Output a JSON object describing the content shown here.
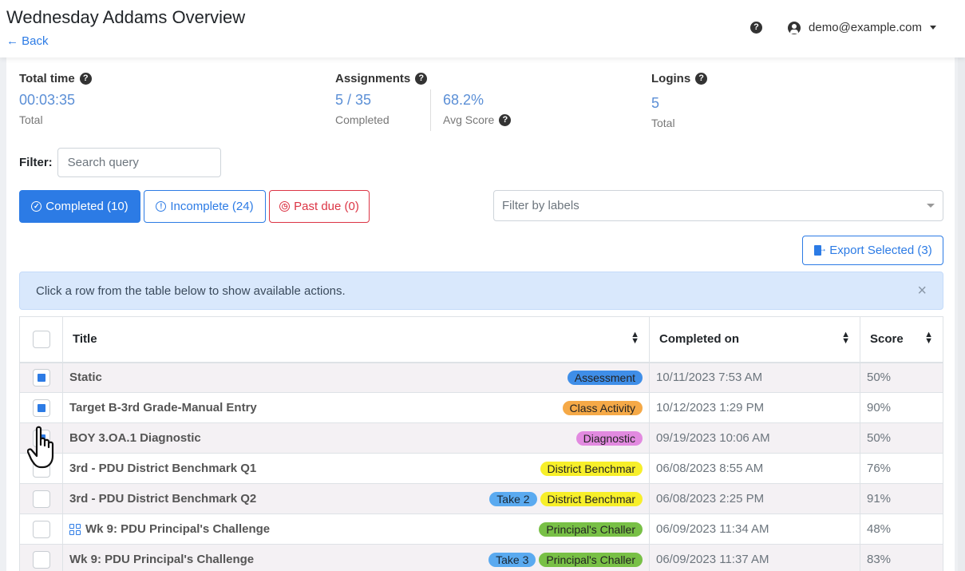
{
  "header": {
    "title": "Wednesday Addams Overview",
    "back_label": "← Back",
    "help": "?",
    "user_email": "demo@example.com"
  },
  "stats": {
    "total_time": {
      "label": "Total time",
      "value": "00:03:35",
      "sub": "Total"
    },
    "assignments": {
      "label": "Assignments",
      "value": "5 / 35",
      "sub": "Completed",
      "avg_value": "68.2%",
      "avg_sub": "Avg Score"
    },
    "logins": {
      "label": "Logins",
      "value": "5",
      "sub": "Total"
    }
  },
  "filter": {
    "label": "Filter:",
    "placeholder": "Search query"
  },
  "tabs": {
    "completed": "Completed (10)",
    "incomplete": "Incomplete (24)",
    "past_due": "Past due (0)"
  },
  "label_filter": {
    "placeholder": "Filter by labels"
  },
  "export": {
    "label": "Export Selected (3)"
  },
  "alert": {
    "text": "Click a row from the table below to show available actions.",
    "close": "×"
  },
  "table": {
    "headers": {
      "title": "Title",
      "completed_on": "Completed on",
      "score": "Score"
    },
    "rows": [
      {
        "checked": true,
        "title": "Static",
        "badges": [
          {
            "text": "Assessment",
            "color": "#3f8ee8"
          }
        ],
        "completed_on": "10/11/2023 7:53 AM",
        "score": "50%"
      },
      {
        "checked": true,
        "title": "Target B-3rd Grade-Manual Entry",
        "badges": [
          {
            "text": "Class Activity",
            "color": "#f5a947"
          }
        ],
        "completed_on": "10/12/2023 1:29 PM",
        "score": "90%"
      },
      {
        "checked": true,
        "title": "BOY 3.OA.1 Diagnostic",
        "badges": [
          {
            "text": "Diagnostic",
            "color": "#e28ae0"
          }
        ],
        "completed_on": "09/19/2023 10:06 AM",
        "score": "50%"
      },
      {
        "checked": false,
        "title": "3rd - PDU District Benchmark Q1",
        "badges": [
          {
            "text": "District Benchmar",
            "color": "#f7ef2a"
          }
        ],
        "completed_on": "06/08/2023 8:55 AM",
        "score": "76%"
      },
      {
        "checked": false,
        "title": "3rd - PDU District Benchmark Q2",
        "badges": [
          {
            "text": "Take 2",
            "color": "#5aaaf0"
          },
          {
            "text": "District Benchmar",
            "color": "#f7ef2a"
          }
        ],
        "completed_on": "06/08/2023 2:25 PM",
        "score": "91%"
      },
      {
        "checked": false,
        "title": "Wk 9: PDU Principal's Challenge",
        "icon": "grid-icon",
        "badges": [
          {
            "text": "Principal's Challer",
            "color": "#78c046"
          }
        ],
        "completed_on": "06/09/2023 11:34 AM",
        "score": "48%"
      },
      {
        "checked": false,
        "title": "Wk 9: PDU Principal's Challenge",
        "badges": [
          {
            "text": "Take 3",
            "color": "#5aaaf0"
          },
          {
            "text": "Principal's Challer",
            "color": "#78c046"
          }
        ],
        "completed_on": "06/09/2023 11:37 AM",
        "score": "83%"
      }
    ]
  },
  "colors": {
    "primary": "#2c7be5",
    "danger": "#dc3545",
    "alert_bg": "#d9e8fc"
  }
}
